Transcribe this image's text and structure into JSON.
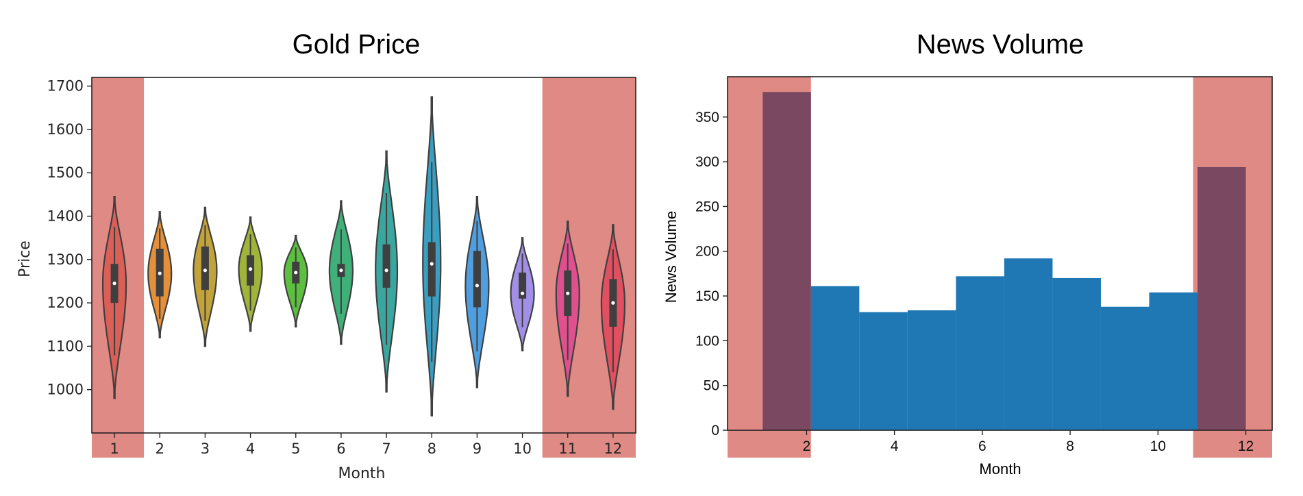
{
  "chart_data": [
    {
      "type": "violin",
      "title": "Gold Price",
      "xlabel": "Month",
      "ylabel": "Price",
      "ylim": [
        900,
        1720
      ],
      "yticks": [
        1000,
        1100,
        1200,
        1300,
        1400,
        1500,
        1600,
        1700
      ],
      "categories": [
        "1",
        "2",
        "3",
        "4",
        "5",
        "6",
        "7",
        "8",
        "9",
        "10",
        "11",
        "12"
      ],
      "highlight_months": [
        1,
        11,
        12
      ],
      "highlight_color": "#e08a86",
      "series": [
        {
          "month": "1",
          "min": 980,
          "q1": 1200,
          "median": 1245,
          "q3": 1290,
          "max": 1445,
          "color": "#db5f57"
        },
        {
          "month": "2",
          "min": 1120,
          "q1": 1215,
          "median": 1268,
          "q3": 1325,
          "max": 1410,
          "color": "#e48f3a"
        },
        {
          "month": "3",
          "min": 1100,
          "q1": 1230,
          "median": 1275,
          "q3": 1330,
          "max": 1420,
          "color": "#c2a23a"
        },
        {
          "month": "4",
          "min": 1135,
          "q1": 1240,
          "median": 1278,
          "q3": 1310,
          "max": 1398,
          "color": "#a0b43a"
        },
        {
          "month": "5",
          "min": 1145,
          "q1": 1245,
          "median": 1270,
          "q3": 1295,
          "max": 1355,
          "color": "#5cbf40"
        },
        {
          "month": "6",
          "min": 1105,
          "q1": 1260,
          "median": 1275,
          "q3": 1290,
          "max": 1435,
          "color": "#40b07a"
        },
        {
          "month": "7",
          "min": 995,
          "q1": 1235,
          "median": 1275,
          "q3": 1335,
          "max": 1550,
          "color": "#3aa6a0"
        },
        {
          "month": "8",
          "min": 940,
          "q1": 1215,
          "median": 1290,
          "q3": 1340,
          "max": 1675,
          "color": "#3a9ec0"
        },
        {
          "month": "9",
          "min": 1005,
          "q1": 1190,
          "median": 1240,
          "q3": 1320,
          "max": 1445,
          "color": "#4f9fe0"
        },
        {
          "month": "10",
          "min": 1090,
          "q1": 1210,
          "median": 1222,
          "q3": 1270,
          "max": 1350,
          "color": "#a28fe8"
        },
        {
          "month": "11",
          "min": 985,
          "q1": 1170,
          "median": 1222,
          "q3": 1275,
          "max": 1388,
          "color": "#e0508e"
        },
        {
          "month": "12",
          "min": 955,
          "q1": 1145,
          "median": 1200,
          "q3": 1255,
          "max": 1380,
          "color": "#e05060"
        }
      ]
    },
    {
      "type": "bar",
      "title": "News Volume",
      "xlabel": "Month",
      "ylabel": "News Volume",
      "xlim": [
        0.2,
        12.6
      ],
      "ylim": [
        0,
        395
      ],
      "xticks": [
        2,
        4,
        6,
        8,
        10,
        12
      ],
      "yticks": [
        0,
        50,
        100,
        150,
        200,
        250,
        300,
        350
      ],
      "bar_color": "#1f77b4",
      "highlight_bar_color": "#7a4860",
      "highlight_color": "#e08a86",
      "highlight_spans": [
        [
          0.2,
          2.1
        ],
        [
          10.8,
          12.6
        ]
      ],
      "bins": [
        {
          "x0": 1.0,
          "x1": 2.1,
          "value": 378
        },
        {
          "x0": 2.1,
          "x1": 3.2,
          "value": 161
        },
        {
          "x0": 3.2,
          "x1": 4.3,
          "value": 132
        },
        {
          "x0": 4.3,
          "x1": 5.4,
          "value": 134
        },
        {
          "x0": 5.4,
          "x1": 6.5,
          "value": 172
        },
        {
          "x0": 6.5,
          "x1": 7.6,
          "value": 192
        },
        {
          "x0": 7.6,
          "x1": 8.7,
          "value": 170
        },
        {
          "x0": 8.7,
          "x1": 9.8,
          "value": 138
        },
        {
          "x0": 9.8,
          "x1": 10.9,
          "value": 154
        },
        {
          "x0": 10.9,
          "x1": 12.0,
          "value": 294
        }
      ]
    }
  ]
}
